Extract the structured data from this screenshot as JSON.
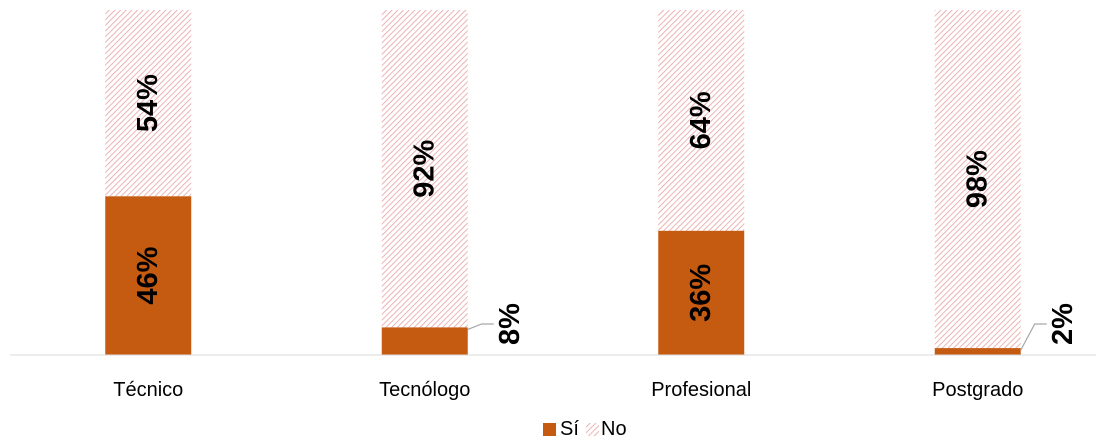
{
  "chart_data": {
    "type": "bar",
    "stacked": true,
    "percent_stacked": true,
    "categories": [
      "Técnico",
      "Tecnólogo",
      "Profesional",
      "Postgrado"
    ],
    "series": [
      {
        "name": "Sí",
        "values": [
          46,
          8,
          36,
          2
        ],
        "labels": [
          "46%",
          "8%",
          "36%",
          "2%"
        ],
        "color": "#C55A11",
        "pattern": "solid"
      },
      {
        "name": "No",
        "values": [
          54,
          92,
          64,
          98
        ],
        "labels": [
          "54%",
          "92%",
          "64%",
          "98%"
        ],
        "color": "#E8A0A0",
        "pattern": "diagonal-hatch"
      }
    ],
    "ylim": [
      0,
      100
    ],
    "grid": false,
    "legend_position": "bottom"
  }
}
